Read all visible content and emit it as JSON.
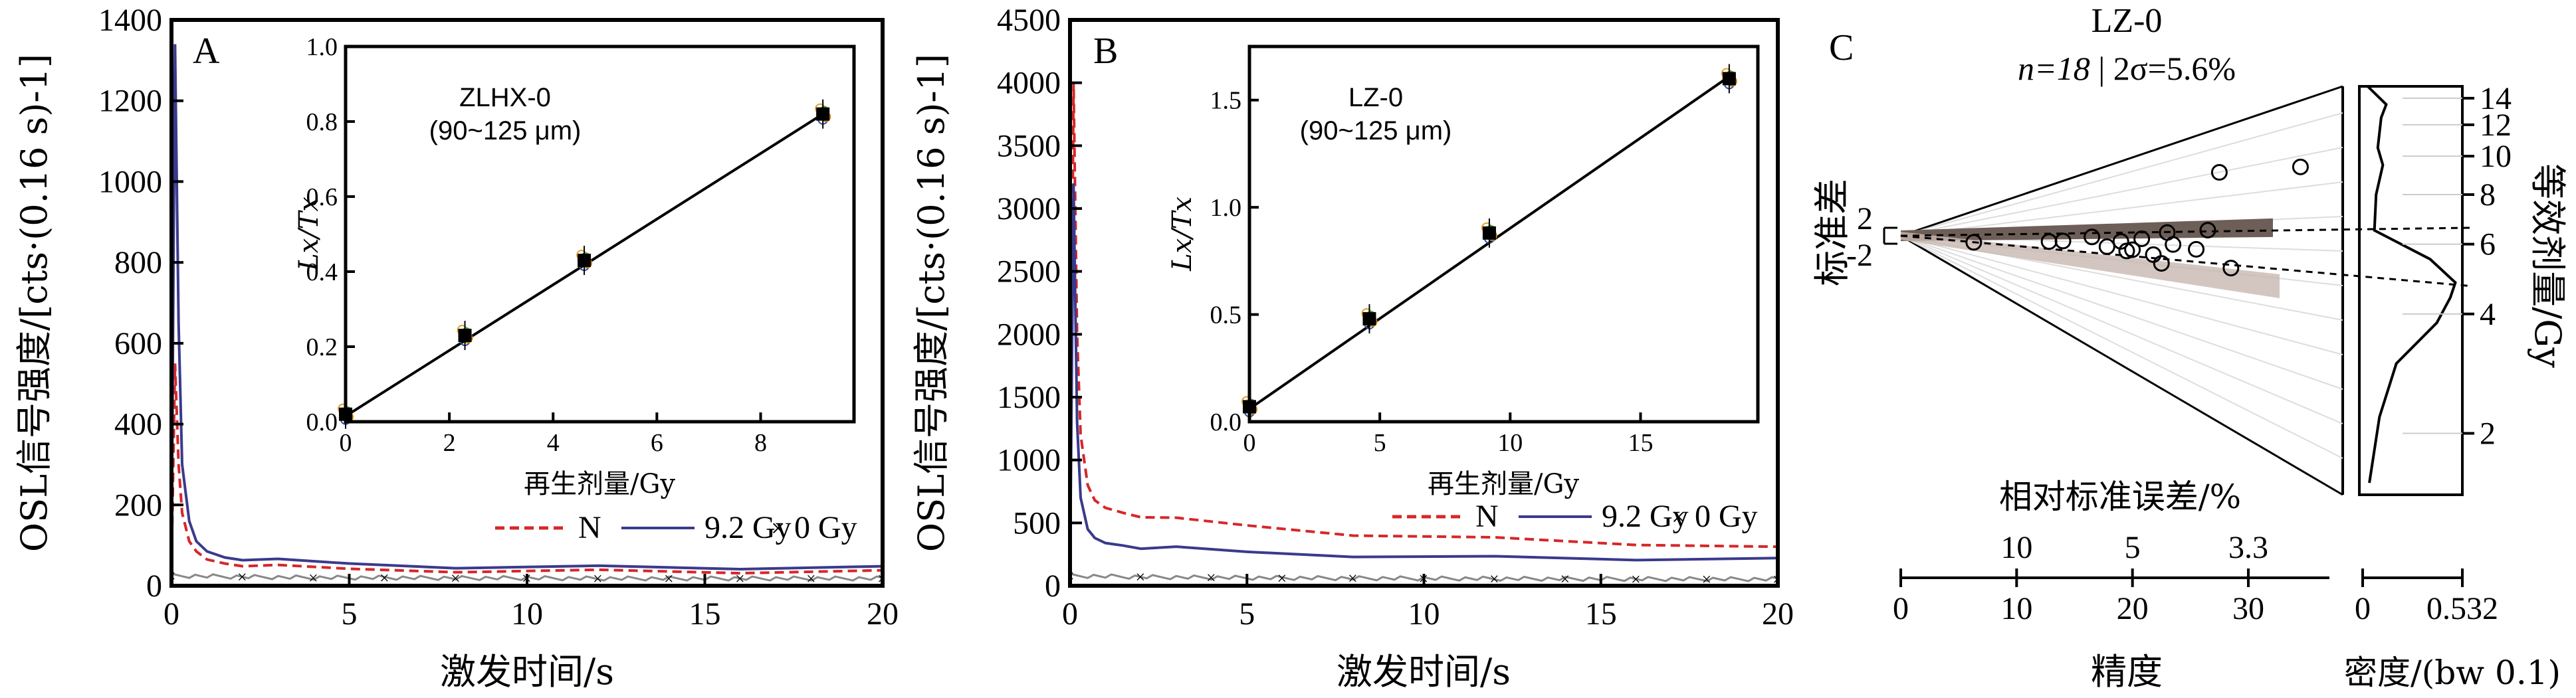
{
  "chart_data": [
    {
      "panel": "A",
      "type": "line",
      "xlabel": "激发时间/s",
      "ylabel": "OSL信号强度/[cts·(0.16 s)-1]",
      "xlim": [
        0,
        20
      ],
      "ylim": [
        0,
        1400
      ],
      "xticks": [
        "0",
        "5",
        "10",
        "15",
        "20"
      ],
      "yticks": [
        "0",
        "200",
        "400",
        "600",
        "800",
        "1000",
        "1200",
        "1400"
      ],
      "series": [
        {
          "name": "N",
          "color": "#d62728",
          "style": "dashed",
          "x": [
            0,
            0.1,
            0.2,
            0.3,
            0.5,
            0.7,
            1,
            1.5,
            2,
            3,
            5,
            8,
            12,
            16,
            20
          ],
          "y": [
            40,
            550,
            300,
            180,
            110,
            85,
            65,
            55,
            50,
            45,
            42,
            40,
            38,
            36,
            35
          ]
        },
        {
          "name": "9.2 Gy",
          "color": "#3a3a8c",
          "style": "solid",
          "x": [
            0,
            0.1,
            0.2,
            0.3,
            0.5,
            0.7,
            1,
            1.5,
            2,
            3,
            5,
            8,
            12,
            16,
            20
          ],
          "y": [
            60,
            1340,
            650,
            300,
            160,
            110,
            85,
            70,
            65,
            60,
            55,
            50,
            48,
            46,
            45
          ]
        },
        {
          "name": "0 Gy",
          "color": "#888888",
          "style": "markers",
          "x": [
            0,
            2,
            4,
            6,
            8,
            10,
            12,
            14,
            16,
            18,
            20
          ],
          "y": [
            25,
            22,
            20,
            20,
            19,
            19,
            18,
            18,
            18,
            18,
            18
          ]
        }
      ],
      "inset": {
        "title": "ZLHX-0",
        "subtitle": "(90~125 μm)",
        "xlabel": "再生剂量/Gy",
        "ylabel": "Lx/Tx",
        "xlim": [
          0,
          9.8
        ],
        "ylim": [
          0,
          1.0
        ],
        "xticks": [
          "0",
          "2",
          "4",
          "6",
          "8"
        ],
        "yticks": [
          "0.0",
          "0.2",
          "0.4",
          "0.6",
          "0.8",
          "1.0"
        ],
        "x": [
          0,
          2.3,
          4.6,
          9.2
        ],
        "y": [
          0.02,
          0.23,
          0.43,
          0.82
        ],
        "fit": [
          [
            0,
            0.015
          ],
          [
            9.2,
            0.82
          ]
        ]
      }
    },
    {
      "panel": "B",
      "type": "line",
      "xlabel": "激发时间/s",
      "ylabel": "OSL信号强度/[cts·(0.16 s)-1]",
      "xlim": [
        0,
        20
      ],
      "ylim": [
        0,
        4500
      ],
      "xticks": [
        "0",
        "5",
        "10",
        "15",
        "20"
      ],
      "yticks": [
        "0",
        "500",
        "1000",
        "1500",
        "2000",
        "2500",
        "3000",
        "3500",
        "4000",
        "4500"
      ],
      "series": [
        {
          "name": "N",
          "color": "#d62728",
          "style": "dashed",
          "x": [
            0,
            0.1,
            0.2,
            0.3,
            0.5,
            0.7,
            1,
            1.5,
            2,
            3,
            5,
            8,
            12,
            16,
            20
          ],
          "y": [
            100,
            4000,
            2000,
            1200,
            800,
            680,
            620,
            580,
            550,
            520,
            480,
            420,
            380,
            340,
            300
          ]
        },
        {
          "name": "9.2 Gy",
          "color": "#3a3a8c",
          "style": "solid",
          "x": [
            0,
            0.1,
            0.2,
            0.3,
            0.5,
            0.7,
            1,
            1.5,
            2,
            3,
            5,
            8,
            12,
            16,
            20
          ],
          "y": [
            100,
            3200,
            1300,
            700,
            450,
            380,
            340,
            320,
            300,
            290,
            270,
            250,
            230,
            220,
            210
          ]
        },
        {
          "name": "0 Gy",
          "color": "#888888",
          "style": "markers",
          "x": [
            0,
            2,
            4,
            6,
            8,
            10,
            12,
            14,
            16,
            18,
            20
          ],
          "y": [
            80,
            70,
            65,
            62,
            60,
            58,
            56,
            55,
            54,
            53,
            52
          ]
        }
      ],
      "inset": {
        "title": "LZ-0",
        "subtitle": "(90~125 μm)",
        "xlabel": "再生剂量/Gy",
        "ylabel": "Lx/Tx",
        "xlim": [
          0,
          19.5
        ],
        "ylim": [
          0,
          1.75
        ],
        "xticks": [
          "0",
          "5",
          "10",
          "15"
        ],
        "yticks": [
          "0.0",
          "0.5",
          "1.0",
          "1.5"
        ],
        "x": [
          0,
          4.6,
          9.2,
          18.4
        ],
        "y": [
          0.07,
          0.48,
          0.88,
          1.6
        ],
        "fit": [
          [
            0,
            0.06
          ],
          [
            18.4,
            1.61
          ]
        ]
      }
    },
    {
      "panel": "C",
      "type": "scatter",
      "title": "LZ-0",
      "stats_n": "n=18",
      "stats_sigma": "| 2σ=5.6%",
      "zlabel": "标准差",
      "z_ticks": [
        "2",
        "-2"
      ],
      "xlabel": "精度",
      "xlim": [
        0,
        37
      ],
      "xticks": [
        "0",
        "10",
        "20",
        "30"
      ],
      "rse_label": "相对标准误差/%",
      "rse_ticks": [
        "10",
        "5",
        "3.3"
      ],
      "ylabel": "等效剂量/Gy",
      "dose_ticks": [
        "2",
        "4",
        "6",
        "8",
        "10",
        "12",
        "14"
      ],
      "density_label": "密度/(bw 0.1)",
      "density_ticks": [
        "0",
        "0.532"
      ],
      "precision": [
        6.3,
        12.8,
        14.0,
        16.5,
        17.8,
        19.0,
        19.5,
        20.0,
        20.8,
        21.8,
        22.5,
        23.0,
        23.5,
        25.5,
        26.5,
        27.5,
        28.5,
        34.5
      ],
      "equivalent_dose": [
        5.0,
        5.7,
        5.8,
        6.2,
        5.5,
        5.9,
        5.3,
        5.4,
        6.1,
        5.2,
        4.8,
        6.5,
        5.8,
        5.6,
        6.6,
        10.5,
        4.9,
        9.8
      ],
      "central_dose_upper": 6.6,
      "central_dose_lower": 4.7,
      "density": [
        [
          1.5,
          0.02
        ],
        [
          2.2,
          0.08
        ],
        [
          3.0,
          0.18
        ],
        [
          3.8,
          0.42
        ],
        [
          4.4,
          0.5
        ],
        [
          4.8,
          0.53
        ],
        [
          5.5,
          0.38
        ],
        [
          6.5,
          0.05
        ],
        [
          8.0,
          0.06
        ],
        [
          9.5,
          0.1
        ],
        [
          10.5,
          0.07
        ],
        [
          12.5,
          0.09
        ],
        [
          13.5,
          0.12
        ],
        [
          15,
          0.01
        ]
      ]
    }
  ]
}
